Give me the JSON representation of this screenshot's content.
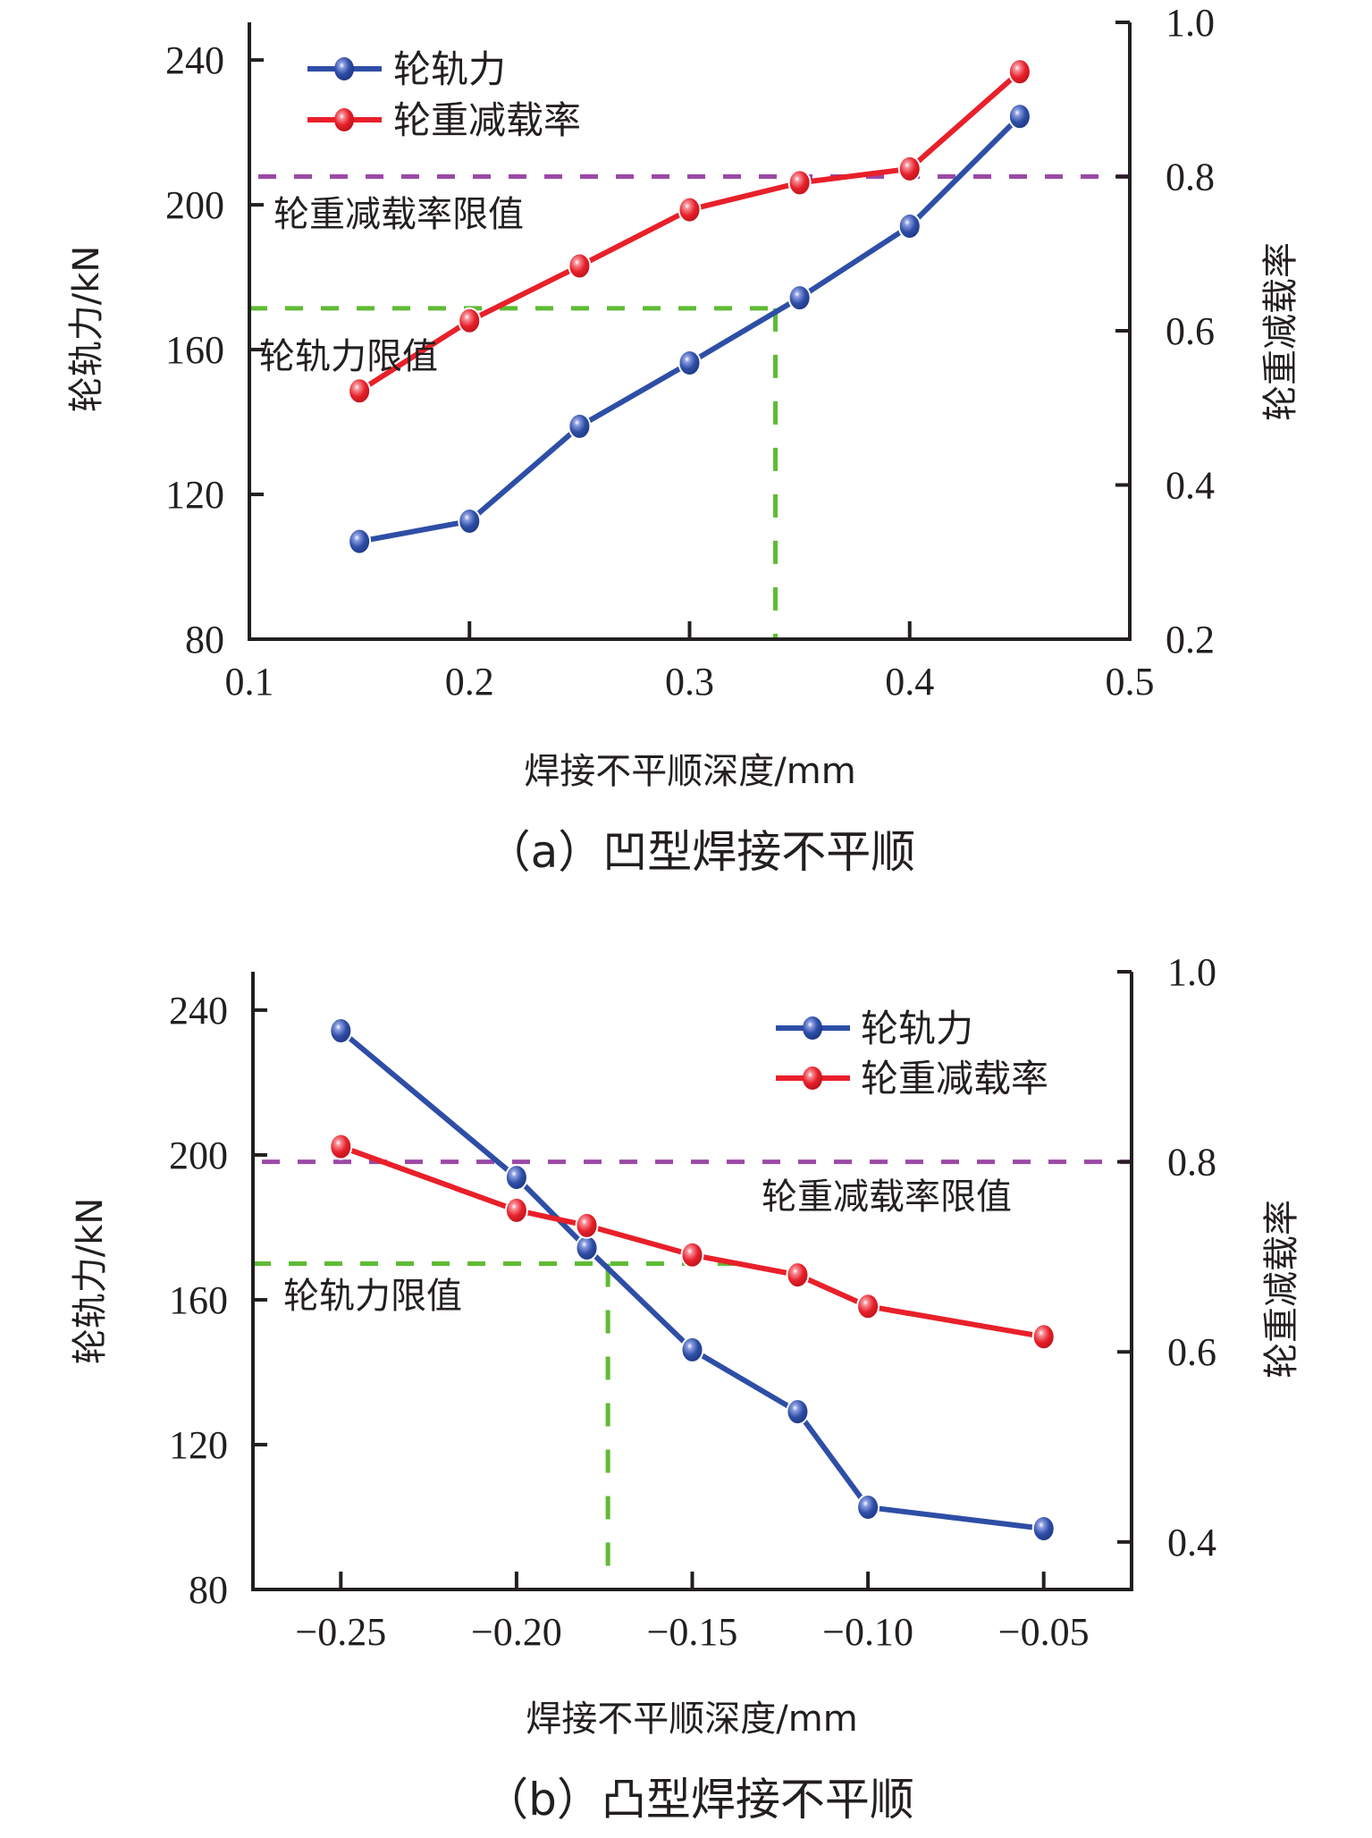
{
  "colors": {
    "wheel_rail_force": "#2e4ea6",
    "wheel_unloading": "#e8202a",
    "unloading_limit_line": "#9b49a6",
    "force_limit_line": "#5fbb34",
    "axis": "#231f20"
  },
  "chart_data": [
    {
      "id": "a",
      "type": "line",
      "caption": "（a）凹型焊接不平顺",
      "xlabel": "焊接不平顺深度/mm",
      "ylabel": "轮轨力/kN",
      "y2label": "轮重减载率",
      "xlim": [
        0.1,
        0.5
      ],
      "xticks": [
        0.1,
        0.2,
        0.3,
        0.4,
        0.5
      ],
      "xtick_labels": [
        "0.1",
        "0.2",
        "0.3",
        "0.4",
        "0.5"
      ],
      "ylim": [
        80,
        250.4
      ],
      "yticks": [
        80,
        120,
        160,
        200,
        240
      ],
      "ytick_labels": [
        "80",
        "120",
        "160",
        "200",
        "240"
      ],
      "y2lim": [
        0.2,
        1.0
      ],
      "y2ticks": [
        0.2,
        0.4,
        0.6,
        0.8,
        1.0
      ],
      "y2tick_labels": [
        "0.2",
        "0.4",
        "0.6",
        "0.8",
        "1.0"
      ],
      "x": [
        0.15,
        0.2,
        0.25,
        0.3,
        0.35,
        0.4,
        0.45
      ],
      "series": [
        {
          "name": "轮轨力",
          "axis": "left",
          "color_key": "wheel_rail_force",
          "values": [
            107.0,
            112.6,
            138.8,
            156.3,
            174.3,
            194.1,
            224.4
          ]
        },
        {
          "name": "轮重减载率",
          "axis": "right",
          "color_key": "wheel_unloading",
          "values": [
            0.522,
            0.613,
            0.684,
            0.757,
            0.792,
            0.81,
            0.936
          ]
        }
      ],
      "legend": {
        "position": "top-left",
        "entries": [
          "轮轨力",
          "轮重减载率"
        ]
      },
      "reference_lines": {
        "unloading_limit": {
          "label": "轮重减载率限值",
          "axis": "right",
          "value": 0.8
        },
        "force_limit": {
          "label": "轮轨力限值",
          "axis": "left",
          "value": 171.4,
          "x_intersect": 0.339
        }
      }
    },
    {
      "id": "b",
      "type": "line",
      "caption": "（b）凸型焊接不平顺",
      "xlabel": "焊接不平顺深度/mm",
      "ylabel": "轮轨力/kN",
      "y2label": "轮重减载率",
      "xlim": [
        -0.275,
        -0.025
      ],
      "xticks": [
        -0.25,
        -0.2,
        -0.15,
        -0.1,
        -0.05
      ],
      "xtick_labels": [
        "−0.25",
        "−0.20",
        "−0.15",
        "−0.10",
        "−0.05"
      ],
      "ylim": [
        80,
        250.6
      ],
      "yticks": [
        80,
        120,
        160,
        200,
        240
      ],
      "ytick_labels": [
        "80",
        "120",
        "160",
        "200",
        "240"
      ],
      "y2lim": [
        0.35,
        1.0
      ],
      "y2ticks": [
        0.4,
        0.6,
        0.8,
        1.0
      ],
      "y2tick_labels": [
        "0.4",
        "0.6",
        "0.8",
        "1.0"
      ],
      "x": [
        -0.25,
        -0.2,
        -0.18,
        -0.15,
        -0.12,
        -0.1,
        -0.05
      ],
      "series": [
        {
          "name": "轮轨力",
          "axis": "left",
          "color_key": "wheel_rail_force",
          "values": [
            234.3,
            193.8,
            174.3,
            146.2,
            129.1,
            102.7,
            96.8
          ]
        },
        {
          "name": "轮重减载率",
          "axis": "right",
          "color_key": "wheel_unloading",
          "values": [
            0.816,
            0.749,
            0.733,
            0.702,
            0.681,
            0.648,
            0.616
          ]
        }
      ],
      "legend": {
        "position": "top-right",
        "entries": [
          "轮轨力",
          "轮重减载率"
        ]
      },
      "reference_lines": {
        "unloading_limit": {
          "label": "轮重减载率限值",
          "axis": "right",
          "value": 0.8
        },
        "force_limit": {
          "label": "轮轨力限值",
          "axis": "left",
          "value": 170.0,
          "x_intersect": -0.174,
          "x_end": -0.138
        }
      }
    }
  ]
}
